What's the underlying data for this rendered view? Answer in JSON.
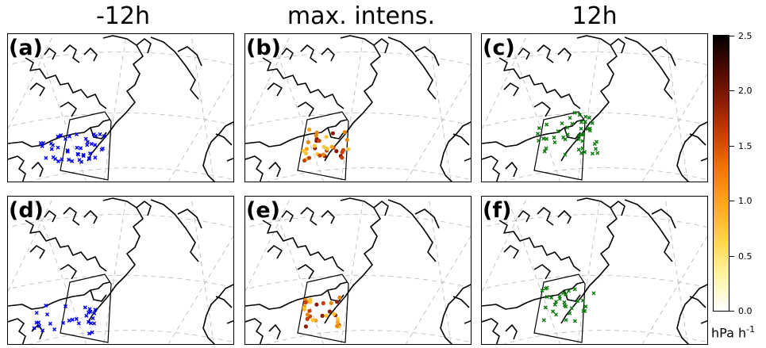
{
  "column_titles": [
    "-12h",
    "max. intens.",
    "12h"
  ],
  "panels": [
    {
      "label": "(a)",
      "marker": "x",
      "color": "#0000ee"
    },
    {
      "label": "(b)",
      "marker": "circle",
      "color": "#e8870a"
    },
    {
      "label": "(c)",
      "marker": "x",
      "color": "#0a7a0a"
    },
    {
      "label": "(d)",
      "marker": "x",
      "color": "#0000ee"
    },
    {
      "label": "(e)",
      "marker": "circle",
      "color": "#e8870a"
    },
    {
      "label": "(f)",
      "marker": "x",
      "color": "#0a7a0a"
    }
  ],
  "colorbar": {
    "ticks": [
      "0.0",
      "0.5",
      "1.0",
      "1.5",
      "2.0",
      "2.5"
    ],
    "unit_base": "hPa h",
    "unit_exp": "-1"
  }
}
